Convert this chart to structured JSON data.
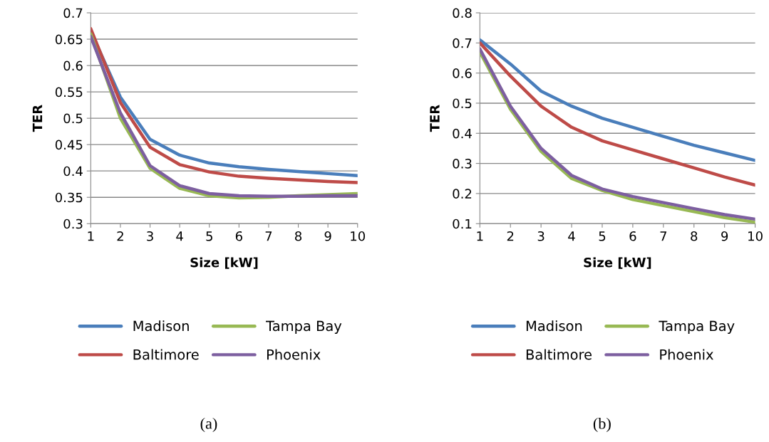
{
  "chart_data": [
    {
      "type": "line",
      "xlabel": "Size [kW]",
      "ylabel": "TER",
      "x": [
        1,
        2,
        3,
        4,
        5,
        6,
        7,
        8,
        9,
        10
      ],
      "xlim": [
        1,
        10
      ],
      "xticks": [
        1,
        2,
        3,
        4,
        5,
        6,
        7,
        8,
        9,
        10
      ],
      "ylim": [
        0.3,
        0.7
      ],
      "yticks": [
        0.3,
        0.35,
        0.4,
        0.45,
        0.5,
        0.55,
        0.6,
        0.65,
        0.7
      ],
      "grid": "y",
      "legend": "bottom",
      "marker": "none",
      "line_style": "solid",
      "annotations": [
        "(a)"
      ],
      "series": [
        {
          "name": "Madison",
          "color": "#4a7ebb",
          "values": [
            0.665,
            0.54,
            0.46,
            0.43,
            0.415,
            0.408,
            0.403,
            0.399,
            0.395,
            0.391
          ]
        },
        {
          "name": "Baltimore",
          "color": "#be4b48",
          "values": [
            0.67,
            0.53,
            0.445,
            0.412,
            0.398,
            0.39,
            0.386,
            0.383,
            0.38,
            0.378
          ]
        },
        {
          "name": "Tampa Bay",
          "color": "#98b954",
          "values": [
            0.66,
            0.5,
            0.405,
            0.367,
            0.353,
            0.349,
            0.35,
            0.353,
            0.355,
            0.357
          ]
        },
        {
          "name": "Phoenix",
          "color": "#7d5fa0",
          "values": [
            0.655,
            0.51,
            0.41,
            0.372,
            0.357,
            0.353,
            0.352,
            0.352,
            0.353,
            0.353
          ]
        }
      ]
    },
    {
      "type": "line",
      "xlabel": "Size [kW]",
      "ylabel": "TER",
      "x": [
        1,
        2,
        3,
        4,
        5,
        6,
        7,
        8,
        9,
        10
      ],
      "xlim": [
        1,
        10
      ],
      "xticks": [
        1,
        2,
        3,
        4,
        5,
        6,
        7,
        8,
        9,
        10
      ],
      "ylim": [
        0.1,
        0.8
      ],
      "yticks": [
        0.1,
        0.2,
        0.3,
        0.4,
        0.5,
        0.6,
        0.7,
        0.8
      ],
      "grid": "y",
      "legend": "bottom",
      "marker": "none",
      "line_style": "solid",
      "annotations": [
        "(b)"
      ],
      "series": [
        {
          "name": "Madison",
          "color": "#4a7ebb",
          "values": [
            0.71,
            0.63,
            0.54,
            0.49,
            0.45,
            0.42,
            0.39,
            0.36,
            0.335,
            0.31
          ]
        },
        {
          "name": "Baltimore",
          "color": "#be4b48",
          "values": [
            0.7,
            0.59,
            0.49,
            0.42,
            0.375,
            0.345,
            0.315,
            0.285,
            0.255,
            0.228
          ]
        },
        {
          "name": "Tampa Bay",
          "color": "#98b954",
          "values": [
            0.67,
            0.48,
            0.34,
            0.25,
            0.21,
            0.18,
            0.16,
            0.14,
            0.12,
            0.105
          ]
        },
        {
          "name": "Phoenix",
          "color": "#7d5fa0",
          "values": [
            0.68,
            0.49,
            0.35,
            0.26,
            0.215,
            0.19,
            0.17,
            0.15,
            0.13,
            0.115
          ]
        }
      ]
    }
  ]
}
